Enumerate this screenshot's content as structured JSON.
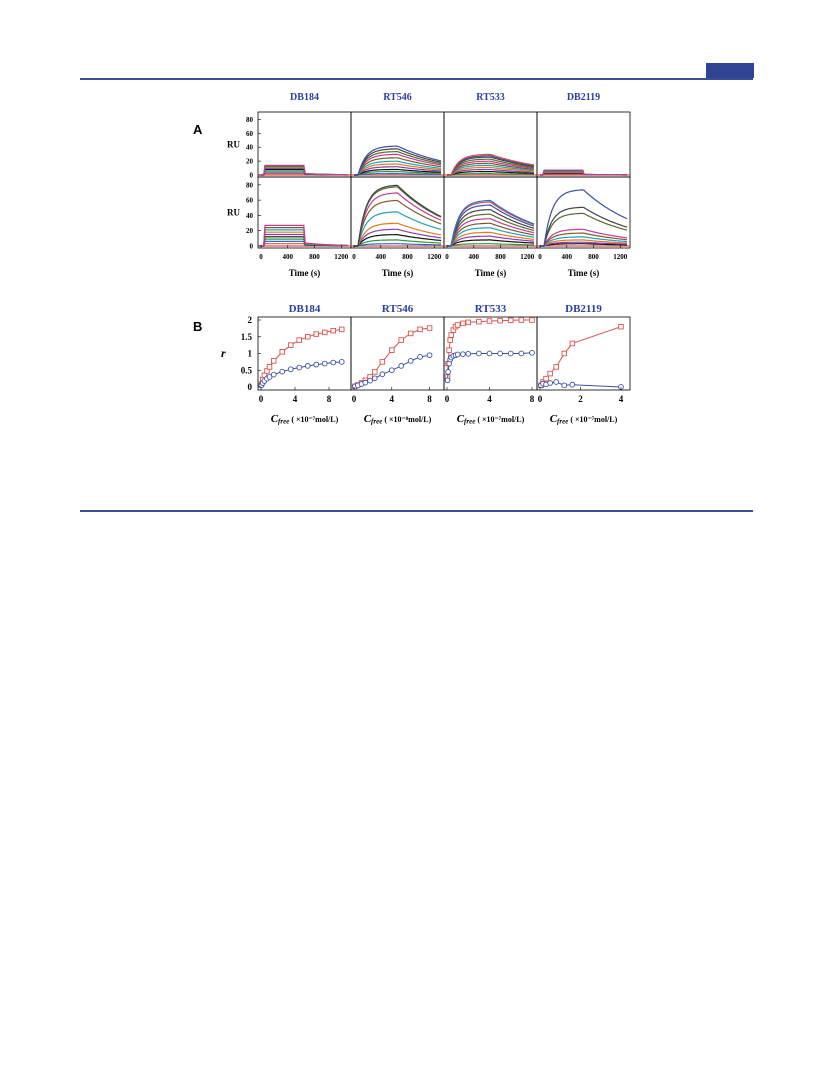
{
  "colors": {
    "rule": "#3a4e9c",
    "header_box": "#2f4593",
    "title": "#2d3fa0",
    "red": "#d9534f",
    "blue": "#3d4fa3"
  },
  "panel_labels": {
    "A": "A",
    "B": "B"
  },
  "panel_a": {
    "drugs": [
      "DB184",
      "RT546",
      "RT533",
      "DB2119"
    ],
    "ylabel": "RU",
    "yticks": [
      "0",
      "20",
      "40",
      "60",
      "80"
    ],
    "xticks": [
      "0",
      "400",
      "800",
      "1200"
    ],
    "xlabel": "Time   (s)",
    "ylim": [
      0,
      85
    ],
    "xlim": [
      -50,
      1300
    ]
  },
  "panel_b": {
    "drugs": [
      "DB184",
      "RT546",
      "RT533",
      "DB2119"
    ],
    "ylabel": "r",
    "yticks": [
      "0",
      "0.5",
      "1",
      "1.5",
      "2"
    ],
    "xticks": [
      [
        "0",
        "4",
        "8"
      ],
      [
        "0",
        "4",
        "8"
      ],
      [
        "0",
        "4",
        "8"
      ],
      [
        "0",
        "2",
        "4"
      ]
    ],
    "xlabels": [
      "Cfree ( ×10⁻⁷mol/L)",
      "Cfree ( ×10⁻⁸mol/L)",
      "Cfree ( ×10⁻⁷mol/L)",
      "Cfree ( ×10⁻⁷mol/L)"
    ]
  },
  "chart_data": [
    {
      "type": "line",
      "description_panel": "A-top",
      "x_range": [
        0,
        1300
      ],
      "y_range": [
        0,
        85
      ],
      "series": [
        {
          "drug": "DB184",
          "plateau": [
            2,
            4,
            6,
            8,
            10,
            11,
            12,
            13,
            14
          ],
          "dissociation": "fast"
        },
        {
          "drug": "RT546",
          "plateau": [
            2,
            5,
            8,
            12,
            16,
            20,
            25,
            30,
            34,
            38,
            42
          ],
          "dissociation": "slow"
        },
        {
          "drug": "RT533",
          "plateau": [
            2,
            5,
            8,
            11,
            14,
            17,
            20,
            23,
            26,
            28,
            30
          ],
          "dissociation": "slow"
        },
        {
          "drug": "DB2119",
          "plateau": [
            2,
            3,
            4,
            5,
            6,
            7
          ],
          "dissociation": "fast"
        }
      ]
    },
    {
      "type": "line",
      "description_panel": "A-bottom",
      "x_range": [
        0,
        1300
      ],
      "y_range": [
        0,
        85
      ],
      "series": [
        {
          "drug": "DB184",
          "plateau": [
            3,
            6,
            9,
            12,
            15,
            18,
            21,
            24,
            27
          ],
          "dissociation": "fast"
        },
        {
          "drug": "RT546",
          "plateau": [
            3,
            8,
            15,
            22,
            30,
            45,
            60,
            70,
            78,
            80
          ],
          "dissociation": "slow"
        },
        {
          "drug": "RT533",
          "plateau": [
            3,
            8,
            13,
            18,
            24,
            30,
            36,
            42,
            48,
            54,
            58,
            60
          ],
          "dissociation": "slow"
        },
        {
          "drug": "DB2119",
          "plateau": [
            3,
            5,
            8,
            12,
            17,
            22,
            43,
            51,
            74
          ],
          "dissociation": "slow"
        }
      ]
    },
    {
      "type": "scatter",
      "description_panel": "B",
      "series": [
        {
          "drug": "DB184",
          "marker": "square",
          "color": "red",
          "x": [
            0.05,
            0.2,
            0.4,
            0.7,
            1.0,
            1.5,
            2.5,
            3.5,
            4.5,
            5.5,
            6.5,
            7.5,
            8.5,
            9.5
          ],
          "y": [
            0.08,
            0.22,
            0.35,
            0.48,
            0.6,
            0.78,
            1.05,
            1.25,
            1.4,
            1.5,
            1.58,
            1.63,
            1.68,
            1.72
          ]
        },
        {
          "drug": "DB184",
          "marker": "circle",
          "color": "blue",
          "x": [
            0.05,
            0.2,
            0.4,
            0.7,
            1.0,
            1.5,
            2.5,
            3.5,
            4.5,
            5.5,
            6.5,
            7.5,
            8.5,
            9.5
          ],
          "y": [
            0.05,
            0.12,
            0.18,
            0.25,
            0.3,
            0.37,
            0.46,
            0.53,
            0.58,
            0.63,
            0.67,
            0.7,
            0.73,
            0.75
          ]
        },
        {
          "drug": "RT546",
          "marker": "square",
          "color": "red",
          "x": [
            0.1,
            0.4,
            0.8,
            1.2,
            1.7,
            2.2,
            3.0,
            4.0,
            5.0,
            6.0,
            7.0,
            8.0
          ],
          "y": [
            0.02,
            0.06,
            0.12,
            0.2,
            0.3,
            0.45,
            0.75,
            1.1,
            1.4,
            1.6,
            1.72,
            1.76
          ]
        },
        {
          "drug": "RT546",
          "marker": "circle",
          "color": "blue",
          "x": [
            0.1,
            0.4,
            0.8,
            1.2,
            1.7,
            2.2,
            3.0,
            4.0,
            5.0,
            6.0,
            7.0,
            8.0
          ],
          "y": [
            0.02,
            0.05,
            0.09,
            0.13,
            0.19,
            0.26,
            0.38,
            0.5,
            0.63,
            0.78,
            0.9,
            0.95
          ]
        },
        {
          "drug": "RT533",
          "marker": "square",
          "color": "red",
          "x": [
            0.05,
            0.1,
            0.2,
            0.3,
            0.4,
            0.6,
            0.8,
            1.0,
            1.5,
            2.0,
            3.0,
            4.0,
            5.0,
            6.0,
            7.0,
            8.0
          ],
          "y": [
            0.3,
            0.7,
            1.1,
            1.4,
            1.55,
            1.7,
            1.8,
            1.85,
            1.9,
            1.93,
            1.95,
            1.97,
            1.98,
            1.99,
            2.0,
            2.0
          ]
        },
        {
          "drug": "RT533",
          "marker": "circle",
          "color": "blue",
          "x": [
            0.05,
            0.1,
            0.2,
            0.3,
            0.4,
            0.6,
            0.8,
            1.0,
            1.5,
            2.0,
            3.0,
            4.0,
            5.0,
            6.0,
            7.0,
            8.0
          ],
          "y": [
            0.2,
            0.45,
            0.7,
            0.82,
            0.88,
            0.93,
            0.95,
            0.97,
            0.98,
            0.99,
            1.0,
            1.0,
            1.0,
            1.0,
            1.0,
            1.02
          ]
        },
        {
          "drug": "DB2119",
          "marker": "square",
          "color": "red",
          "x": [
            0.05,
            0.15,
            0.3,
            0.5,
            0.8,
            1.2,
            1.6,
            4.0
          ],
          "y": [
            0.05,
            0.15,
            0.25,
            0.4,
            0.6,
            1.0,
            1.3,
            1.8
          ]
        },
        {
          "drug": "DB2119",
          "marker": "circle",
          "color": "blue",
          "x": [
            0.05,
            0.15,
            0.3,
            0.5,
            0.8,
            1.2,
            1.6,
            4.0
          ],
          "y": [
            0.05,
            0.1,
            0.08,
            0.12,
            0.15,
            0.05,
            0.07,
            0.0
          ]
        }
      ]
    }
  ]
}
